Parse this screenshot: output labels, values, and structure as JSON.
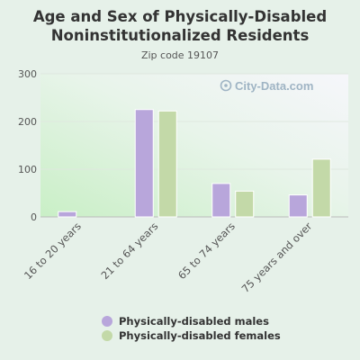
{
  "chart_data": {
    "type": "bar",
    "title": "Age and Sex of Physically-Disabled Noninstitutionalized Residents",
    "subtitle": "Zip code 19107",
    "categories": [
      "16 to 20 years",
      "21 to 64 years",
      "65 to 74 years",
      "75 years and over"
    ],
    "series": [
      {
        "name": "Physically-disabled males",
        "values": [
          11,
          225,
          70,
          46
        ],
        "color": "#b8a6db"
      },
      {
        "name": "Physically-disabled females",
        "values": [
          0,
          222,
          54,
          121
        ],
        "color": "#c3d9a8"
      }
    ],
    "ylim": [
      0,
      300
    ],
    "yticks": [
      0,
      100,
      200,
      300
    ],
    "grid": true,
    "legend_position": "bottom",
    "watermark": "City-Data.com"
  }
}
